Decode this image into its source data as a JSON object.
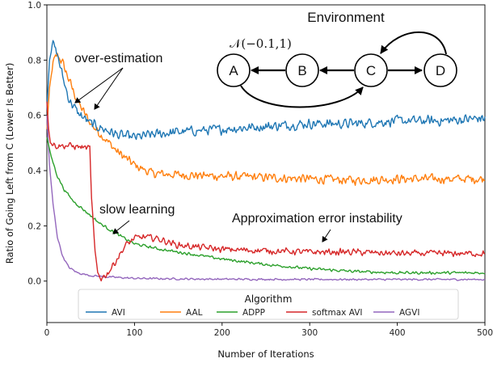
{
  "chart_data": {
    "type": "line",
    "xlabel": "Number of Iterations",
    "ylabel": "Ratio of Going Left from C (Lower Is Better)",
    "xlim": [
      0,
      500
    ],
    "ylim": [
      -0.15,
      1.0
    ],
    "xticks": [
      "0",
      "100",
      "200",
      "300",
      "400",
      "500"
    ],
    "yticks": [
      "0.0",
      "0.2",
      "0.4",
      "0.6",
      "0.8",
      "1.0"
    ],
    "grid": false,
    "legend": {
      "title": "Algorithm",
      "placement": "bottom-center",
      "entries": [
        "AVI",
        "AAL",
        "ADPP",
        "softmax AVI",
        "AGVI"
      ]
    },
    "series": [
      {
        "name": "AVI",
        "color": "#1f77b4",
        "points": [
          [
            0,
            0.62
          ],
          [
            3,
            0.8
          ],
          [
            7,
            0.86
          ],
          [
            12,
            0.82
          ],
          [
            18,
            0.74
          ],
          [
            25,
            0.66
          ],
          [
            35,
            0.61
          ],
          [
            50,
            0.57
          ],
          [
            65,
            0.55
          ],
          [
            80,
            0.53
          ],
          [
            100,
            0.52
          ],
          [
            120,
            0.53
          ],
          [
            150,
            0.54
          ],
          [
            200,
            0.55
          ],
          [
            250,
            0.56
          ],
          [
            300,
            0.57
          ],
          [
            350,
            0.57
          ],
          [
            400,
            0.58
          ],
          [
            450,
            0.58
          ],
          [
            500,
            0.59
          ]
        ]
      },
      {
        "name": "AAL",
        "color": "#ff7f0e",
        "points": [
          [
            0,
            0.55
          ],
          [
            3,
            0.7
          ],
          [
            7,
            0.79
          ],
          [
            12,
            0.82
          ],
          [
            18,
            0.79
          ],
          [
            25,
            0.73
          ],
          [
            35,
            0.65
          ],
          [
            50,
            0.57
          ],
          [
            65,
            0.52
          ],
          [
            80,
            0.47
          ],
          [
            100,
            0.42
          ],
          [
            120,
            0.39
          ],
          [
            150,
            0.385
          ],
          [
            200,
            0.38
          ],
          [
            250,
            0.375
          ],
          [
            300,
            0.37
          ],
          [
            350,
            0.365
          ],
          [
            400,
            0.37
          ],
          [
            450,
            0.37
          ],
          [
            500,
            0.37
          ]
        ]
      },
      {
        "name": "ADPP",
        "color": "#2ca02c",
        "points": [
          [
            0,
            0.52
          ],
          [
            5,
            0.45
          ],
          [
            12,
            0.38
          ],
          [
            20,
            0.33
          ],
          [
            30,
            0.29
          ],
          [
            45,
            0.25
          ],
          [
            60,
            0.21
          ],
          [
            80,
            0.17
          ],
          [
            100,
            0.135
          ],
          [
            130,
            0.115
          ],
          [
            160,
            0.1
          ],
          [
            200,
            0.08
          ],
          [
            250,
            0.06
          ],
          [
            300,
            0.045
          ],
          [
            350,
            0.035
          ],
          [
            400,
            0.03
          ],
          [
            450,
            0.03
          ],
          [
            500,
            0.03
          ]
        ]
      },
      {
        "name": "softmax AVI",
        "color": "#d62728",
        "points": [
          [
            0,
            0.65
          ],
          [
            2,
            0.55
          ],
          [
            4,
            0.5
          ],
          [
            10,
            0.49
          ],
          [
            25,
            0.49
          ],
          [
            40,
            0.485
          ],
          [
            49,
            0.48
          ],
          [
            51,
            0.3
          ],
          [
            55,
            0.1
          ],
          [
            58,
            0.03
          ],
          [
            62,
            0.01
          ],
          [
            70,
            0.03
          ],
          [
            80,
            0.08
          ],
          [
            90,
            0.13
          ],
          [
            100,
            0.155
          ],
          [
            110,
            0.16
          ],
          [
            125,
            0.155
          ],
          [
            150,
            0.13
          ],
          [
            200,
            0.115
          ],
          [
            250,
            0.11
          ],
          [
            300,
            0.105
          ],
          [
            350,
            0.105
          ],
          [
            400,
            0.1
          ],
          [
            450,
            0.1
          ],
          [
            500,
            0.1
          ]
        ]
      },
      {
        "name": "AGVI",
        "color": "#9467bd",
        "points": [
          [
            0,
            0.6
          ],
          [
            3,
            0.42
          ],
          [
            7,
            0.28
          ],
          [
            12,
            0.16
          ],
          [
            18,
            0.09
          ],
          [
            25,
            0.05
          ],
          [
            35,
            0.03
          ],
          [
            50,
            0.02
          ],
          [
            70,
            0.015
          ],
          [
            100,
            0.01
          ],
          [
            150,
            0.008
          ],
          [
            200,
            0.007
          ],
          [
            300,
            0.006
          ],
          [
            400,
            0.006
          ],
          [
            500,
            0.006
          ]
        ]
      }
    ],
    "annotations": [
      {
        "text": "over-estimation"
      },
      {
        "text": "slow learning"
      },
      {
        "text": "Approximation error instability"
      }
    ],
    "inset": {
      "title": "Environment",
      "distribution": "𝒩(−0.1,1)",
      "nodes": [
        "A",
        "B",
        "C",
        "D"
      ]
    }
  }
}
